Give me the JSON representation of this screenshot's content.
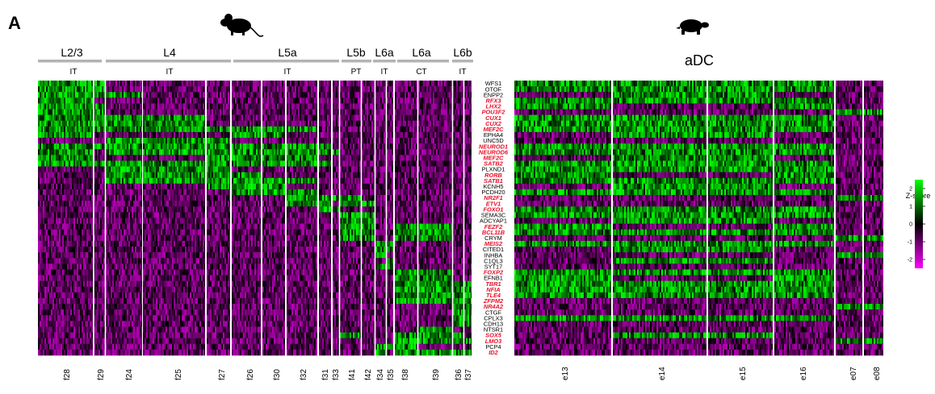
{
  "panel_label": "A",
  "colors": {
    "high": "#00ff00",
    "mid": "#000000",
    "low": "#ff00ff",
    "accent_gene": "#e8102a",
    "normal_gene": "#000000",
    "bracket": "#b3b3b3"
  },
  "icons": {
    "left": "mouse-icon",
    "right": "turtle-icon"
  },
  "chart_data": {
    "type": "heatmap",
    "title": "",
    "colorbar": {
      "title": "Z-score",
      "ticks": [
        "2",
        "1",
        "0",
        "-1",
        "-2"
      ],
      "range": [
        -2.5,
        2.5
      ]
    },
    "mouse": {
      "layers": [
        {
          "label": "L2/3",
          "subclass": "IT",
          "clusters": [
            "f28",
            "f29"
          ]
        },
        {
          "label": "L4",
          "subclass": "IT",
          "clusters": [
            "f24",
            "f25",
            "f27"
          ]
        },
        {
          "label": "L5a",
          "subclass": "IT",
          "clusters": [
            "f26",
            "f30",
            "f32",
            "f31",
            "f33"
          ]
        },
        {
          "label": "L5b",
          "subclass": "PT",
          "clusters": [
            "f41",
            "f42"
          ]
        },
        {
          "label": "L6a",
          "subclass": "IT",
          "clusters": [
            "f34",
            "f35"
          ]
        },
        {
          "label": "L6a",
          "subclass": "CT",
          "clusters": [
            "f38",
            "f39"
          ]
        },
        {
          "label": "L6b",
          "subclass": "IT",
          "clusters": [
            "f36",
            "f37"
          ]
        }
      ],
      "clusters": [
        "f28",
        "f29",
        "f24",
        "f25",
        "f27",
        "f26",
        "f30",
        "f32",
        "f31",
        "f33",
        "f41",
        "f42",
        "f34",
        "f35",
        "f38",
        "f39",
        "f36",
        "f37"
      ]
    },
    "turtle": {
      "region": "aDC",
      "clusters": [
        "e13",
        "e14",
        "e15",
        "e16",
        "e07",
        "e08"
      ]
    },
    "genes": [
      {
        "name": "WFS1",
        "tf": false
      },
      {
        "name": "OTOF",
        "tf": false
      },
      {
        "name": "ENPP2",
        "tf": false
      },
      {
        "name": "RFX3",
        "tf": true
      },
      {
        "name": "LHX2",
        "tf": true
      },
      {
        "name": "POU3F2",
        "tf": true
      },
      {
        "name": "CUX1",
        "tf": true
      },
      {
        "name": "CUX2",
        "tf": true
      },
      {
        "name": "MEF2C",
        "tf": true
      },
      {
        "name": "EPHA4",
        "tf": false
      },
      {
        "name": "UNC5D",
        "tf": false
      },
      {
        "name": "NEUROD1",
        "tf": true
      },
      {
        "name": "NEUROD6",
        "tf": true
      },
      {
        "name": "MEF2C",
        "tf": true
      },
      {
        "name": "SATB2",
        "tf": true
      },
      {
        "name": "PLXND1",
        "tf": false
      },
      {
        "name": "RORB",
        "tf": true
      },
      {
        "name": "SATB1",
        "tf": true
      },
      {
        "name": "KCNH5",
        "tf": false
      },
      {
        "name": "PCDH20",
        "tf": false
      },
      {
        "name": "NR2F1",
        "tf": true
      },
      {
        "name": "ETV1",
        "tf": true
      },
      {
        "name": "FOXO1",
        "tf": true
      },
      {
        "name": "SEMA3C",
        "tf": false
      },
      {
        "name": "ADCYAP1",
        "tf": false
      },
      {
        "name": "FEZF2",
        "tf": true
      },
      {
        "name": "BCL11B",
        "tf": true
      },
      {
        "name": "CRYM",
        "tf": false
      },
      {
        "name": "MEIS2",
        "tf": true
      },
      {
        "name": "CITED1",
        "tf": false
      },
      {
        "name": "INHBA",
        "tf": false
      },
      {
        "name": "C1QL3",
        "tf": false
      },
      {
        "name": "SYT17",
        "tf": false
      },
      {
        "name": "FOXP2",
        "tf": true
      },
      {
        "name": "EFNB1",
        "tf": false
      },
      {
        "name": "TBR1",
        "tf": true
      },
      {
        "name": "NFIA",
        "tf": true
      },
      {
        "name": "TLE4",
        "tf": true
      },
      {
        "name": "ZFPM2",
        "tf": true
      },
      {
        "name": "NR4A2",
        "tf": true
      },
      {
        "name": "CTGF",
        "tf": false
      },
      {
        "name": "CPLX3",
        "tf": false
      },
      {
        "name": "CDH13",
        "tf": false
      },
      {
        "name": "NTSR1",
        "tf": false
      },
      {
        "name": "SOX5",
        "tf": true
      },
      {
        "name": "LMO3",
        "tf": true
      },
      {
        "name": "PCP4",
        "tf": false
      },
      {
        "name": "ID2",
        "tf": true
      }
    ]
  }
}
